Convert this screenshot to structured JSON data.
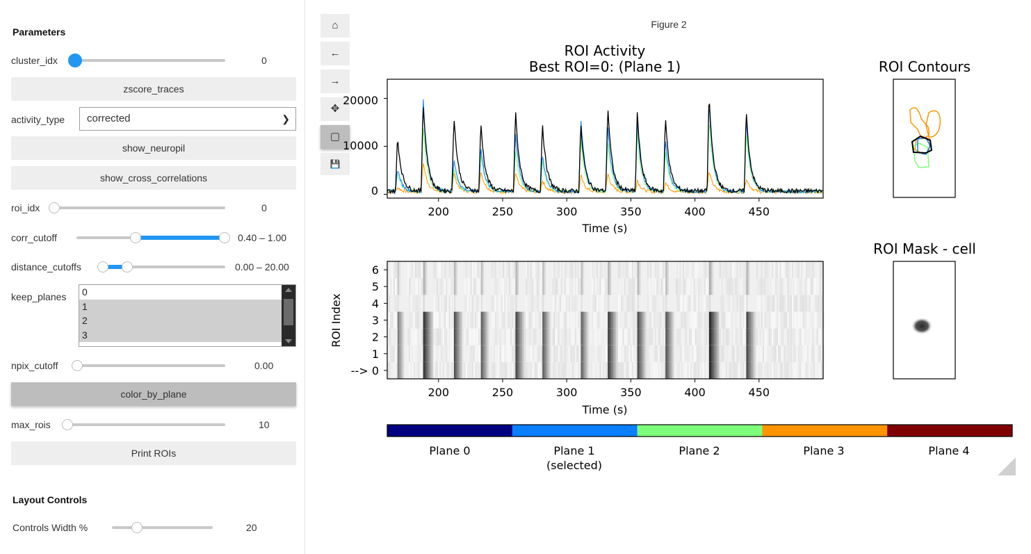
{
  "params": {
    "title": "Parameters",
    "cluster_idx": {
      "label": "cluster_idx",
      "value": "0",
      "level": 0
    },
    "zscore_button": "zscore_traces",
    "activity_type": {
      "label": "activity_type",
      "value": "corrected"
    },
    "show_neuropil_button": "show_neuropil",
    "show_cross_button": "show_cross_correlations",
    "roi_idx": {
      "label": "roi_idx",
      "value": "0",
      "level": 0
    },
    "corr_cutoff": {
      "label": "corr_cutoff",
      "value": "0.40 – 1.00",
      "low": 0.4,
      "high": 1.0
    },
    "distance_cutoffs": {
      "label": "distance_cutoffs",
      "value": "0.00 – 20.00",
      "low": 0.0,
      "high": 20.0
    },
    "keep_planes": {
      "label": "keep_planes",
      "options": [
        "0",
        "1",
        "2",
        "3"
      ],
      "selected": [
        "1",
        "2",
        "3"
      ]
    },
    "npix_cutoff": {
      "label": "npix_cutoff",
      "value": "0.00",
      "level": 0
    },
    "color_button": "color_by_plane",
    "max_rois": {
      "label": "max_rois",
      "value": "10",
      "level": 10
    },
    "print_button": "Print ROIs"
  },
  "layout_controls": {
    "title": "Layout Controls",
    "controls_width": {
      "label": "Controls Width %",
      "value": "20",
      "level": 20
    }
  },
  "toolbar": {
    "icons": [
      "home-icon",
      "back-arrow-icon",
      "forward-arrow-icon",
      "pan-move-icon",
      "zoom-rect-icon",
      "save-icon"
    ],
    "glyphs": [
      "⌂",
      "←",
      "→",
      "✥",
      "▢",
      "💾"
    ]
  },
  "figure": {
    "title": "Figure 2",
    "activity_title_line1": "ROI Activity",
    "activity_title_line2": "Best ROI=0: (Plane 1)",
    "activity_xlabel": "Time (s)",
    "activity_yticks": [
      "0",
      "10000",
      "20000"
    ],
    "heatmap_xlabel": "Time (s)",
    "heatmap_ylabel": "ROI Index",
    "heatmap_yticks": [
      "--> 0",
      "1",
      "2",
      "3",
      "4",
      "5",
      "6"
    ],
    "xticks": [
      "200",
      "250",
      "300",
      "350",
      "400",
      "450"
    ],
    "contours_title": "ROI Contours",
    "mask_title": "ROI Mask - cell"
  },
  "colors": {
    "plane0": "#000080",
    "plane1": "#0a7fff",
    "plane2": "#7dff7a",
    "plane3": "#ff9400",
    "plane4": "#800000",
    "accent": "#2196f3"
  },
  "colorbar": {
    "planes": [
      {
        "label": "Plane 0",
        "sub": ""
      },
      {
        "label": "Plane 1",
        "sub": "(selected)"
      },
      {
        "label": "Plane 2",
        "sub": ""
      },
      {
        "label": "Plane 3",
        "sub": ""
      },
      {
        "label": "Plane 4",
        "sub": ""
      }
    ]
  },
  "chart_data": {
    "type": "line",
    "title": "ROI Activity",
    "subtitle": "Best ROI=0: (Plane 1)",
    "xlabel": "Time (s)",
    "ylabel": "",
    "xlim": [
      160,
      500
    ],
    "ylim": [
      -800,
      24000
    ],
    "peak_times": [
      168,
      188,
      212,
      233,
      260,
      281,
      311,
      332,
      355,
      377,
      411,
      440
    ],
    "series": [
      {
        "color": "#000000",
        "peaks": [
          11500,
          19000,
          16000,
          14500,
          17000,
          14500,
          14000,
          18000,
          16500,
          15500,
          20500,
          17000
        ]
      },
      {
        "color": "#0a7fff",
        "peaks": [
          5000,
          20500,
          7000,
          9500,
          12500,
          8000,
          16000,
          14000,
          15000,
          11000,
          19000,
          15500
        ]
      },
      {
        "color": "#7dff7a",
        "peaks": [
          4000,
          14000,
          5000,
          8000,
          9000,
          6500,
          11000,
          10500,
          12000,
          8500,
          15500,
          12500
        ]
      },
      {
        "color": "#ff9400",
        "peaks": [
          1000,
          6500,
          4000,
          4500,
          4000,
          2500,
          3500,
          4000,
          2500,
          2000,
          4500,
          3000
        ]
      }
    ]
  }
}
